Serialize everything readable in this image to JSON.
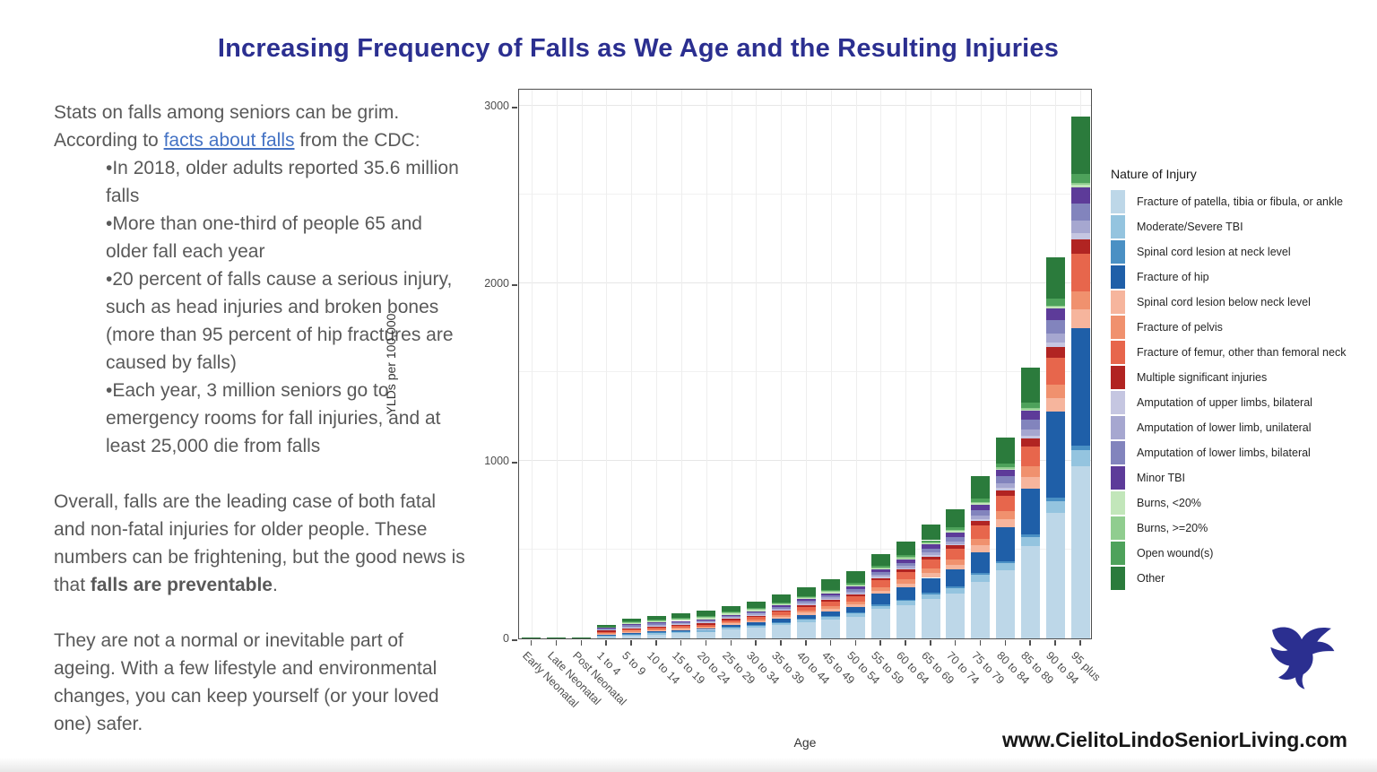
{
  "title": {
    "text": "Increasing Frequency of Falls as We Age and the Resulting Injuries",
    "color": "#2b2f90"
  },
  "article": {
    "intro_line1": "Stats on falls among seniors can be grim.",
    "intro_prefix": "According to ",
    "intro_link": "facts about falls",
    "intro_suffix": " from the CDC:",
    "bullets": [
      "In 2018, older adults reported 35.6 million falls",
      "More than one-third of people 65 and older fall each year",
      "20 percent of falls cause a serious injury, such as head injuries and broken bones (more than 95 percent of hip fractures are caused by falls)",
      "Each year, 3 million seniors go to emergency rooms for fall injuries, and at least 25,000 die from falls"
    ],
    "para2_part1": "Overall, falls are the leading case of both fatal and non-fatal injuries for older people. These numbers can be frightening, but the good news is that ",
    "para2_bold": "falls are preventable",
    "para2_part2": ".",
    "para3": "They are not a normal or inevitable part of ageing. With a few lifestyle and environmental changes, you can keep yourself (or your loved one) safer."
  },
  "footer": {
    "website": "www.CielitoLindoSeniorLiving.com",
    "logo": "bird-logo",
    "logo_color": "#2b2f90",
    "link_color": "#4472c4"
  },
  "chart_data": {
    "type": "bar",
    "stacked": true,
    "xlabel": "Age",
    "ylabel": "YLDs per 100,000",
    "ylim": [
      0,
      3000
    ],
    "yticks": [
      0,
      1000,
      2000,
      3000
    ],
    "grid": true,
    "legend_title": "Nature of Injury",
    "legend_position": "right",
    "categories": [
      "Early Neonatal",
      "Late Neonatal",
      "Post Neonatal",
      "1 to 4",
      "5 to 9",
      "10 to 14",
      "15 to 19",
      "20 to 24",
      "25 to 29",
      "30 to 34",
      "35 to 39",
      "40 to 44",
      "45 to 49",
      "50 to 54",
      "55 to 59",
      "60 to 64",
      "65 to 69",
      "70 to 74",
      "75 to 79",
      "80 to 84",
      "85 to 89",
      "90 to 94",
      "95 plus"
    ],
    "series": [
      {
        "name": "Fracture of patella, tibia or fibula, or ankle",
        "color": "#bdd7e8",
        "values": [
          0,
          0,
          0,
          7,
          13,
          22,
          29,
          36,
          52,
          62,
          77,
          92,
          107,
          123,
          165,
          189,
          224,
          254,
          320,
          385,
          519,
          708,
          970
        ]
      },
      {
        "name": "Moderate/Severe TBI",
        "color": "#94c4df",
        "values": [
          0,
          0,
          0,
          1,
          2,
          4,
          5,
          6,
          7,
          8,
          10,
          13,
          15,
          17,
          19,
          22,
          26,
          29,
          37,
          40,
          53,
          67,
          91
        ]
      },
      {
        "name": "Spinal cord lesion at neck level",
        "color": "#4a90c4",
        "values": [
          0,
          0,
          0,
          0,
          1,
          1,
          2,
          2,
          2,
          3,
          3,
          4,
          5,
          6,
          6,
          6,
          8,
          9,
          11,
          11,
          15,
          19,
          26
        ]
      },
      {
        "name": "Fracture of hip",
        "color": "#1f5fa8",
        "values": [
          0,
          0,
          0,
          1,
          2,
          4,
          5,
          6,
          13,
          15,
          19,
          22,
          26,
          30,
          61,
          70,
          83,
          95,
          119,
          192,
          259,
          483,
          662
        ]
      },
      {
        "name": "Spinal cord lesion below neck level",
        "color": "#f6b59d",
        "values": [
          0,
          0,
          0,
          1,
          2,
          3,
          4,
          5,
          6,
          7,
          9,
          11,
          13,
          15,
          19,
          22,
          26,
          29,
          37,
          45,
          61,
          77,
          106
        ]
      },
      {
        "name": "Fracture of pelvis",
        "color": "#f0916e",
        "values": [
          0,
          0,
          0,
          1,
          2,
          3,
          4,
          5,
          6,
          7,
          9,
          11,
          13,
          15,
          19,
          22,
          26,
          29,
          37,
          45,
          61,
          73,
          100
        ]
      },
      {
        "name": "Fracture of femur, other than femoral neck",
        "color": "#e7664c",
        "values": [
          0,
          0,
          0,
          2,
          4,
          7,
          9,
          12,
          13,
          16,
          20,
          24,
          27,
          32,
          38,
          43,
          51,
          58,
          73,
          85,
          114,
          155,
          212
        ]
      },
      {
        "name": "Multiple significant injuries",
        "color": "#b12422",
        "values": [
          0,
          0,
          0,
          1,
          2,
          3,
          4,
          4,
          5,
          6,
          7,
          8,
          10,
          11,
          13,
          15,
          18,
          20,
          26,
          32,
          43,
          58,
          79
        ]
      },
      {
        "name": "Amputation of upper limbs, bilateral",
        "color": "#c5c6e1",
        "values": [
          0,
          0,
          0,
          0,
          1,
          1,
          1,
          2,
          2,
          2,
          3,
          3,
          4,
          4,
          5,
          6,
          7,
          8,
          10,
          12,
          17,
          26,
          35
        ]
      },
      {
        "name": "Amputation of lower limb, unilateral",
        "color": "#a6a7d0",
        "values": [
          0,
          0,
          0,
          1,
          1,
          2,
          3,
          3,
          4,
          5,
          6,
          7,
          8,
          9,
          11,
          13,
          15,
          17,
          22,
          27,
          37,
          52,
          71
        ]
      },
      {
        "name": "Amputation of lower limbs, bilateral",
        "color": "#8284bd",
        "values": [
          0,
          0,
          0,
          1,
          2,
          3,
          4,
          4,
          6,
          7,
          8,
          10,
          11,
          13,
          16,
          18,
          22,
          25,
          31,
          38,
          52,
          73,
          100
        ]
      },
      {
        "name": "Minor TBI",
        "color": "#5d3b99",
        "values": [
          0,
          0,
          0,
          1,
          2,
          4,
          5,
          6,
          6,
          7,
          9,
          11,
          13,
          15,
          16,
          19,
          22,
          25,
          32,
          37,
          50,
          67,
          91
        ]
      },
      {
        "name": "Burns, <20%",
        "color": "#c2e6ba",
        "values": [
          0,
          0,
          0,
          0,
          1,
          1,
          1,
          2,
          2,
          2,
          2,
          3,
          3,
          4,
          4,
          4,
          5,
          6,
          7,
          7,
          9,
          9,
          12
        ]
      },
      {
        "name": "Burns, >=20%",
        "color": "#90cd8f",
        "values": [
          0,
          0,
          0,
          0,
          1,
          1,
          1,
          2,
          2,
          2,
          2,
          3,
          3,
          4,
          4,
          4,
          5,
          6,
          7,
          7,
          9,
          9,
          12
        ]
      },
      {
        "name": "Open wound(s)",
        "color": "#4ea25b",
        "values": [
          0,
          0,
          0,
          1,
          1,
          2,
          3,
          3,
          3,
          4,
          5,
          6,
          7,
          8,
          9,
          11,
          13,
          15,
          18,
          20,
          27,
          36,
          50
        ]
      },
      {
        "name": "Other",
        "color": "#2b7b3c",
        "values": [
          2,
          2,
          5,
          6,
          11,
          18,
          23,
          29,
          29,
          34,
          42,
          50,
          58,
          68,
          66,
          76,
          90,
          102,
          128,
          147,
          198,
          236,
          323
        ]
      }
    ]
  }
}
